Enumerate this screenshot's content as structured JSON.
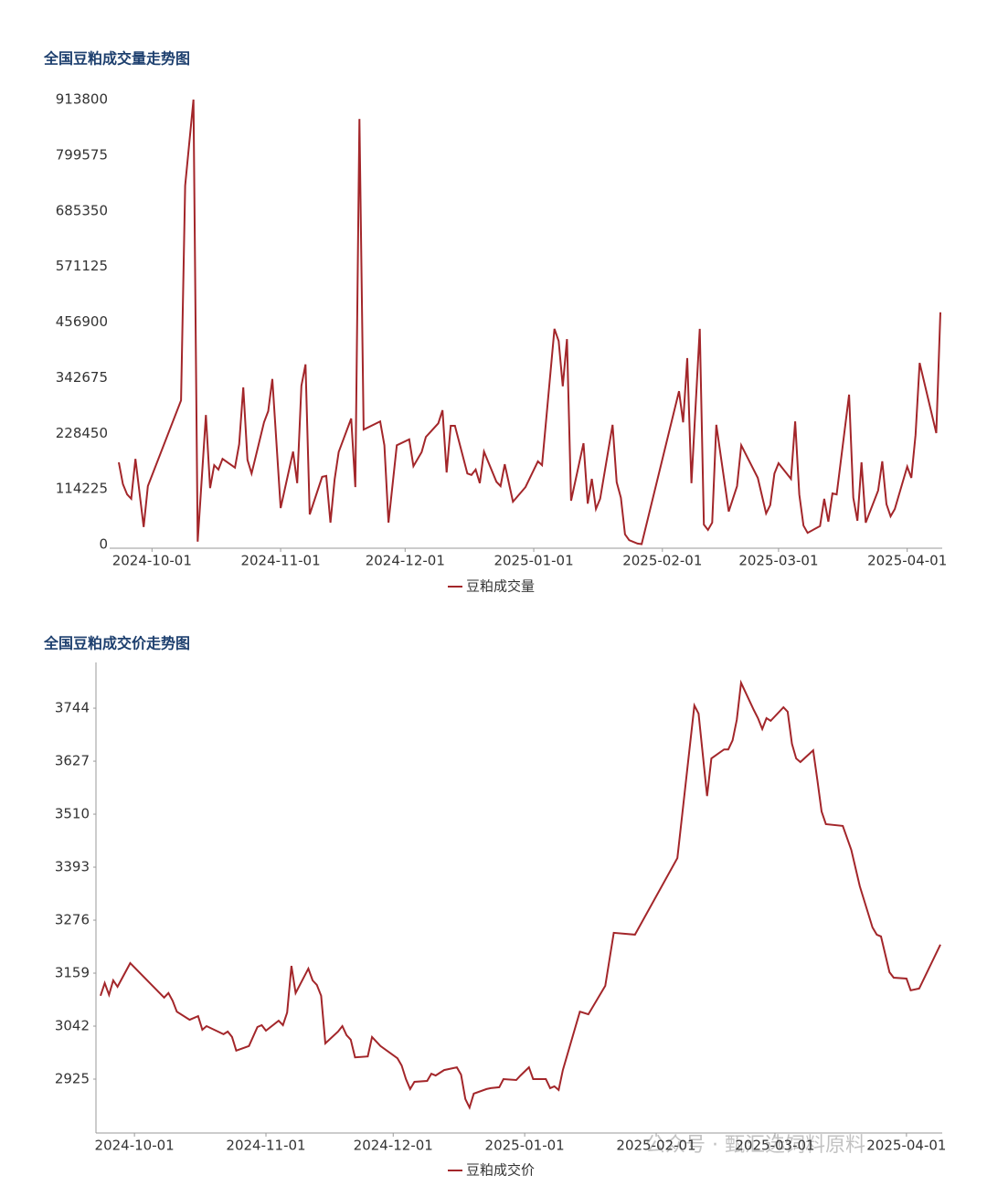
{
  "chart_data": [
    {
      "type": "line",
      "title": "全国豆粕成交量走势图",
      "x": [
        "2024-09-23",
        "2024-09-24",
        "2024-09-25",
        "2024-09-26",
        "2024-09-27",
        "2024-09-29",
        "2024-09-30",
        "2024-10-08",
        "2024-10-09",
        "2024-10-11",
        "2024-10-12",
        "2024-10-14",
        "2024-10-15",
        "2024-10-16",
        "2024-10-17",
        "2024-10-18",
        "2024-10-21",
        "2024-10-22",
        "2024-10-23",
        "2024-10-24",
        "2024-10-25",
        "2024-10-28",
        "2024-10-29",
        "2024-10-30",
        "2024-11-01",
        "2024-11-04",
        "2024-11-05",
        "2024-11-06",
        "2024-11-07",
        "2024-11-08",
        "2024-11-11",
        "2024-11-12",
        "2024-11-13",
        "2024-11-14",
        "2024-11-15",
        "2024-11-18",
        "2024-11-19",
        "2024-11-20",
        "2024-11-21",
        "2024-11-25",
        "2024-11-26",
        "2024-11-27",
        "2024-11-29",
        "2024-12-02",
        "2024-12-03",
        "2024-12-05",
        "2024-12-06",
        "2024-12-09",
        "2024-12-10",
        "2024-12-11",
        "2024-12-12",
        "2024-12-13",
        "2024-12-16",
        "2024-12-17",
        "2024-12-18",
        "2024-12-19",
        "2024-12-20",
        "2024-12-23",
        "2024-12-24",
        "2024-12-25",
        "2024-12-27",
        "2024-12-30",
        "2025-01-02",
        "2025-01-03",
        "2025-01-06",
        "2025-01-07",
        "2025-01-08",
        "2025-01-09",
        "2025-01-10",
        "2025-01-13",
        "2025-01-14",
        "2025-01-15",
        "2025-01-16",
        "2025-01-17",
        "2025-01-20",
        "2025-01-21",
        "2025-01-22",
        "2025-01-23",
        "2025-01-24",
        "2025-01-26",
        "2025-01-27",
        "2025-02-05",
        "2025-02-06",
        "2025-02-07",
        "2025-02-08",
        "2025-02-10",
        "2025-02-11",
        "2025-02-12",
        "2025-02-13",
        "2025-02-14",
        "2025-02-17",
        "2025-02-19",
        "2025-02-20",
        "2025-02-24",
        "2025-02-26",
        "2025-02-27",
        "2025-02-28",
        "2025-03-01",
        "2025-03-04",
        "2025-03-05",
        "2025-03-06",
        "2025-03-07",
        "2025-03-08",
        "2025-03-11",
        "2025-03-12",
        "2025-03-13",
        "2025-03-14",
        "2025-03-15",
        "2025-03-18",
        "2025-03-19",
        "2025-03-20",
        "2025-03-21",
        "2025-03-22",
        "2025-03-25",
        "2025-03-26",
        "2025-03-27",
        "2025-03-28",
        "2025-03-29",
        "2025-04-01",
        "2025-04-02",
        "2025-04-03",
        "2025-04-04",
        "2025-04-08",
        "2025-04-09"
      ],
      "series": [
        {
          "name": "豆粕成交量",
          "color": "#a3262a",
          "values": [
            168800,
            124000,
            103000,
            94000,
            176000,
            36000,
            120000,
            296000,
            737000,
            913800,
            6000,
            266000,
            116000,
            163000,
            154000,
            176000,
            158000,
            206000,
            323000,
            174000,
            146000,
            251000,
            274000,
            340000,
            75000,
            191000,
            126000,
            326000,
            370000,
            62000,
            139000,
            141000,
            45000,
            133000,
            190000,
            259000,
            118000,
            874000,
            236000,
            253000,
            204000,
            45000,
            204000,
            216000,
            161000,
            190000,
            221000,
            249000,
            276000,
            148000,
            244000,
            244000,
            146000,
            143000,
            154000,
            126000,
            191000,
            129000,
            120000,
            165000,
            88000,
            118000,
            171000,
            163000,
            443000,
            418000,
            325000,
            422000,
            90000,
            208000,
            84000,
            135000,
            73000,
            94000,
            246000,
            128000,
            96000,
            21000,
            9000,
            2000,
            1000,
            315000,
            251000,
            383000,
            126000,
            443000,
            41000,
            30000,
            45000,
            246000,
            68000,
            120000,
            204000,
            137000,
            64000,
            81000,
            146000,
            167000,
            135000,
            253000,
            103000,
            39000,
            24000,
            38000,
            94000,
            47000,
            105000,
            103000,
            308000,
            96000,
            49000,
            169000,
            45000,
            111000,
            171000,
            83000,
            58000,
            73000,
            160000,
            137000,
            225000,
            373000,
            229000,
            477000
          ]
        }
      ],
      "xlim": [
        "2024-09-23",
        "2025-04-09"
      ],
      "xticks": [
        "2024-10-01",
        "2024-11-01",
        "2024-12-01",
        "2025-01-01",
        "2025-02-01",
        "2025-03-01",
        "2025-04-01"
      ],
      "ylim": [
        0,
        913800
      ],
      "yticks": [
        0,
        114225,
        228450,
        342675,
        456900,
        571125,
        685350,
        799575,
        913800
      ],
      "legend": "bottom"
    },
    {
      "type": "line",
      "title": "全国豆粕成交价走势图",
      "x": [
        "2024-09-23",
        "2024-09-24",
        "2024-09-25",
        "2024-09-26",
        "2024-09-27",
        "2024-09-30",
        "2024-10-08",
        "2024-10-09",
        "2024-10-10",
        "2024-10-11",
        "2024-10-14",
        "2024-10-16",
        "2024-10-17",
        "2024-10-18",
        "2024-10-22",
        "2024-10-23",
        "2024-10-24",
        "2024-10-25",
        "2024-10-28",
        "2024-10-30",
        "2024-10-31",
        "2024-11-01",
        "2024-11-04",
        "2024-11-05",
        "2024-11-06",
        "2024-11-07",
        "2024-11-08",
        "2024-11-11",
        "2024-11-12",
        "2024-11-13",
        "2024-11-14",
        "2024-11-15",
        "2024-11-18",
        "2024-11-19",
        "2024-11-20",
        "2024-11-21",
        "2024-11-22",
        "2024-11-25",
        "2024-11-26",
        "2024-11-28",
        "2024-12-02",
        "2024-12-03",
        "2024-12-04",
        "2024-12-05",
        "2024-12-06",
        "2024-12-09",
        "2024-12-10",
        "2024-12-11",
        "2024-12-12",
        "2024-12-13",
        "2024-12-16",
        "2024-12-17",
        "2024-12-18",
        "2024-12-19",
        "2024-12-20",
        "2024-12-23",
        "2024-12-24",
        "2024-12-26",
        "2024-12-27",
        "2024-12-30",
        "2024-12-31",
        "2025-01-02",
        "2025-01-03",
        "2025-01-06",
        "2025-01-07",
        "2025-01-08",
        "2025-01-09",
        "2025-01-10",
        "2025-01-14",
        "2025-01-16",
        "2025-01-20",
        "2025-01-22",
        "2025-01-27",
        "2025-02-06",
        "2025-02-10",
        "2025-02-11",
        "2025-02-13",
        "2025-02-14",
        "2025-02-17",
        "2025-02-18",
        "2025-02-19",
        "2025-02-20",
        "2025-02-21",
        "2025-02-24",
        "2025-02-25",
        "2025-02-26",
        "2025-02-27",
        "2025-02-28",
        "2025-03-03",
        "2025-03-04",
        "2025-03-05",
        "2025-03-06",
        "2025-03-07",
        "2025-03-10",
        "2025-03-11",
        "2025-03-12",
        "2025-03-13",
        "2025-03-17",
        "2025-03-19",
        "2025-03-21",
        "2025-03-24",
        "2025-03-25",
        "2025-03-26",
        "2025-03-28",
        "2025-03-29",
        "2025-04-01",
        "2025-04-02",
        "2025-04-04",
        "2025-04-09"
      ],
      "series": [
        {
          "name": "豆粕成交价",
          "color": "#a3262a",
          "values": [
            3109,
            3137,
            3111,
            3143,
            3129,
            3181,
            3105,
            3115,
            3098,
            3074,
            3056,
            3064,
            3034,
            3042,
            3024,
            3030,
            3018,
            2988,
            2998,
            3040,
            3044,
            3032,
            3054,
            3044,
            3072,
            3175,
            3115,
            3169,
            3143,
            3133,
            3109,
            3004,
            3030,
            3042,
            3022,
            3012,
            2973,
            2975,
            3018,
            2998,
            2971,
            2955,
            2925,
            2903,
            2919,
            2921,
            2937,
            2933,
            2939,
            2945,
            2951,
            2935,
            2881,
            2862,
            2893,
            2903,
            2905,
            2907,
            2925,
            2923,
            2933,
            2951,
            2925,
            2925,
            2905,
            2909,
            2901,
            2945,
            3074,
            3068,
            3131,
            3248,
            3244,
            3413,
            3750,
            3732,
            3550,
            3633,
            3653,
            3653,
            3673,
            3718,
            3800,
            3740,
            3722,
            3698,
            3722,
            3716,
            3746,
            3736,
            3665,
            3633,
            3625,
            3651,
            3585,
            3516,
            3488,
            3484,
            3431,
            3351,
            3260,
            3244,
            3240,
            3161,
            3149,
            3147,
            3121,
            3125,
            3222
          ]
        }
      ],
      "xlim": [
        "2024-09-23",
        "2025-04-09"
      ],
      "xticks": [
        "2024-10-01",
        "2024-11-01",
        "2024-12-01",
        "2025-01-01",
        "2025-02-01",
        "2025-03-01",
        "2025-04-01"
      ],
      "ylim": [
        2806,
        3845
      ],
      "yticks": [
        2925,
        3042,
        3159,
        3276,
        3393,
        3510,
        3627,
        3744
      ],
      "legend": "bottom"
    }
  ],
  "watermark": "公众号 · 甄汇选饲料原料"
}
